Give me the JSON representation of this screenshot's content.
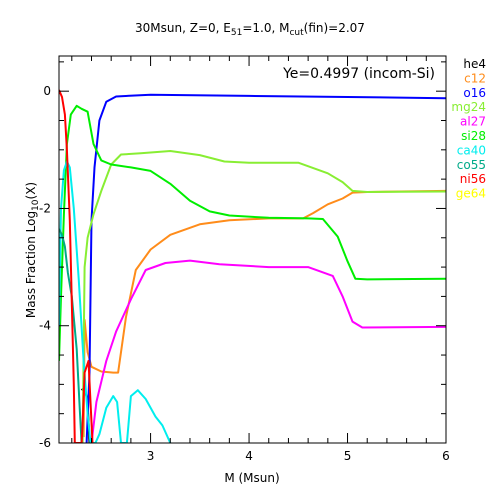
{
  "chart_data": {
    "type": "line",
    "title": "30Msun, Z=0, E51=1.0, Mcut(fin)=2.07",
    "title_parts": {
      "p1": "30Msun, Z=0, E",
      "sub1": "51",
      "p2": "=1.0, M",
      "sub2": "cut",
      "p3": "(fin)=2.07"
    },
    "annotation": "Ye=0.4997 (incom-Si)",
    "xlabel": "M (Msun)",
    "ylabel_parts": {
      "p1": "Mass Fraction Log",
      "sub": "10",
      "p2": "(X)"
    },
    "xlim": [
      2.07,
      6.0
    ],
    "ylim": [
      -6,
      0.6
    ],
    "xticks": [
      3,
      4,
      5,
      6
    ],
    "yticks": [
      0,
      -2,
      -4,
      -6
    ],
    "grid": false,
    "legend_position": "right-outside",
    "series": [
      {
        "name": "he4",
        "color": "#000000",
        "points": [
          [
            2.3,
            -5.1
          ],
          [
            2.33,
            -5.05
          ],
          [
            2.36,
            -5.3
          ],
          [
            2.38,
            -6.0
          ]
        ]
      },
      {
        "name": "c12",
        "color": "#ff8c1a",
        "points": [
          [
            2.32,
            -5.9
          ],
          [
            2.33,
            -3.9
          ],
          [
            2.36,
            -4.45
          ],
          [
            2.4,
            -4.7
          ],
          [
            2.5,
            -4.78
          ],
          [
            2.62,
            -4.8
          ],
          [
            2.67,
            -4.8
          ],
          [
            2.75,
            -3.85
          ],
          [
            2.85,
            -3.05
          ],
          [
            3.0,
            -2.7
          ],
          [
            3.2,
            -2.45
          ],
          [
            3.5,
            -2.27
          ],
          [
            3.8,
            -2.2
          ],
          [
            4.2,
            -2.17
          ],
          [
            4.55,
            -2.17
          ],
          [
            4.65,
            -2.08
          ],
          [
            4.8,
            -1.93
          ],
          [
            4.95,
            -1.83
          ],
          [
            5.05,
            -1.73
          ],
          [
            5.2,
            -1.72
          ],
          [
            6.0,
            -1.7
          ]
        ]
      },
      {
        "name": "o16",
        "color": "#0000ff",
        "points": [
          [
            2.35,
            -6.0
          ],
          [
            2.38,
            -4.8
          ],
          [
            2.4,
            -2.2
          ],
          [
            2.43,
            -1.3
          ],
          [
            2.48,
            -0.5
          ],
          [
            2.55,
            -0.18
          ],
          [
            2.65,
            -0.09
          ],
          [
            3.0,
            -0.06
          ],
          [
            4.0,
            -0.08
          ],
          [
            5.0,
            -0.1
          ],
          [
            6.0,
            -0.12
          ]
        ]
      },
      {
        "name": "mg24",
        "color": "#88ee33",
        "points": [
          [
            2.31,
            -6.0
          ],
          [
            2.33,
            -3.0
          ],
          [
            2.36,
            -2.5
          ],
          [
            2.42,
            -2.1
          ],
          [
            2.5,
            -1.7
          ],
          [
            2.6,
            -1.25
          ],
          [
            2.7,
            -1.08
          ],
          [
            2.9,
            -1.06
          ],
          [
            3.2,
            -1.02
          ],
          [
            3.5,
            -1.09
          ],
          [
            3.75,
            -1.2
          ],
          [
            4.0,
            -1.22
          ],
          [
            4.5,
            -1.22
          ],
          [
            4.8,
            -1.4
          ],
          [
            4.95,
            -1.55
          ],
          [
            5.05,
            -1.7
          ],
          [
            5.2,
            -1.72
          ],
          [
            6.0,
            -1.71
          ]
        ]
      },
      {
        "name": "al27",
        "color": "#ff00ff",
        "points": [
          [
            2.4,
            -6.0
          ],
          [
            2.45,
            -5.3
          ],
          [
            2.55,
            -4.6
          ],
          [
            2.65,
            -4.1
          ],
          [
            2.8,
            -3.55
          ],
          [
            2.95,
            -3.05
          ],
          [
            3.15,
            -2.93
          ],
          [
            3.4,
            -2.89
          ],
          [
            3.7,
            -2.95
          ],
          [
            4.2,
            -3.0
          ],
          [
            4.6,
            -3.0
          ],
          [
            4.85,
            -3.15
          ],
          [
            4.95,
            -3.5
          ],
          [
            5.05,
            -3.93
          ],
          [
            5.15,
            -4.03
          ],
          [
            6.0,
            -4.02
          ]
        ]
      },
      {
        "name": "si28",
        "color": "#00ee00",
        "points": [
          [
            2.07,
            -4.6
          ],
          [
            2.09,
            -3.5
          ],
          [
            2.12,
            -2.1
          ],
          [
            2.15,
            -0.9
          ],
          [
            2.19,
            -0.4
          ],
          [
            2.25,
            -0.25
          ],
          [
            2.3,
            -0.3
          ],
          [
            2.36,
            -0.35
          ],
          [
            2.42,
            -0.9
          ],
          [
            2.5,
            -1.18
          ],
          [
            2.6,
            -1.25
          ],
          [
            2.8,
            -1.3
          ],
          [
            3.0,
            -1.36
          ],
          [
            3.2,
            -1.58
          ],
          [
            3.4,
            -1.87
          ],
          [
            3.6,
            -2.05
          ],
          [
            3.8,
            -2.12
          ],
          [
            4.2,
            -2.16
          ],
          [
            4.6,
            -2.17
          ],
          [
            4.75,
            -2.18
          ],
          [
            4.9,
            -2.48
          ],
          [
            5.0,
            -2.9
          ],
          [
            5.08,
            -3.2
          ],
          [
            5.2,
            -3.21
          ],
          [
            6.0,
            -3.2
          ]
        ]
      },
      {
        "name": "ca40",
        "color": "#00eeee",
        "points": [
          [
            2.07,
            -4.0
          ],
          [
            2.09,
            -2.0
          ],
          [
            2.12,
            -1.35
          ],
          [
            2.15,
            -1.2
          ],
          [
            2.18,
            -1.3
          ],
          [
            2.22,
            -2.0
          ],
          [
            2.27,
            -3.2
          ],
          [
            2.32,
            -4.6
          ],
          [
            2.36,
            -5.5
          ],
          [
            2.39,
            -6.0
          ],
          [
            2.44,
            -6.0
          ],
          [
            2.48,
            -5.85
          ],
          [
            2.55,
            -5.4
          ],
          [
            2.62,
            -5.2
          ],
          [
            2.66,
            -5.3
          ],
          [
            2.7,
            -6.0
          ],
          [
            2.76,
            -6.0
          ],
          [
            2.8,
            -5.2
          ],
          [
            2.87,
            -5.1
          ],
          [
            2.95,
            -5.25
          ],
          [
            3.05,
            -5.55
          ],
          [
            3.12,
            -5.7
          ],
          [
            3.2,
            -6.0
          ]
        ]
      },
      {
        "name": "co55",
        "color": "#00aa88",
        "points": [
          [
            2.07,
            -2.35
          ],
          [
            2.1,
            -2.45
          ],
          [
            2.13,
            -2.65
          ],
          [
            2.16,
            -3.1
          ],
          [
            2.2,
            -3.5
          ],
          [
            2.25,
            -4.4
          ],
          [
            2.28,
            -5.4
          ],
          [
            2.3,
            -6.0
          ]
        ]
      },
      {
        "name": "ni56",
        "color": "#ff0000",
        "points": [
          [
            2.07,
            0.02
          ],
          [
            2.1,
            -0.1
          ],
          [
            2.13,
            -0.4
          ],
          [
            2.15,
            -1.0
          ],
          [
            2.18,
            -2.2
          ],
          [
            2.2,
            -3.6
          ],
          [
            2.22,
            -5.0
          ],
          [
            2.23,
            -6.0
          ],
          [
            2.3,
            -6.0
          ],
          [
            2.31,
            -5.7
          ],
          [
            2.33,
            -4.8
          ],
          [
            2.37,
            -4.6
          ],
          [
            2.39,
            -5.3
          ],
          [
            2.41,
            -6.0
          ]
        ]
      },
      {
        "name": "ge64",
        "color": "#ffff00",
        "points": []
      }
    ]
  }
}
